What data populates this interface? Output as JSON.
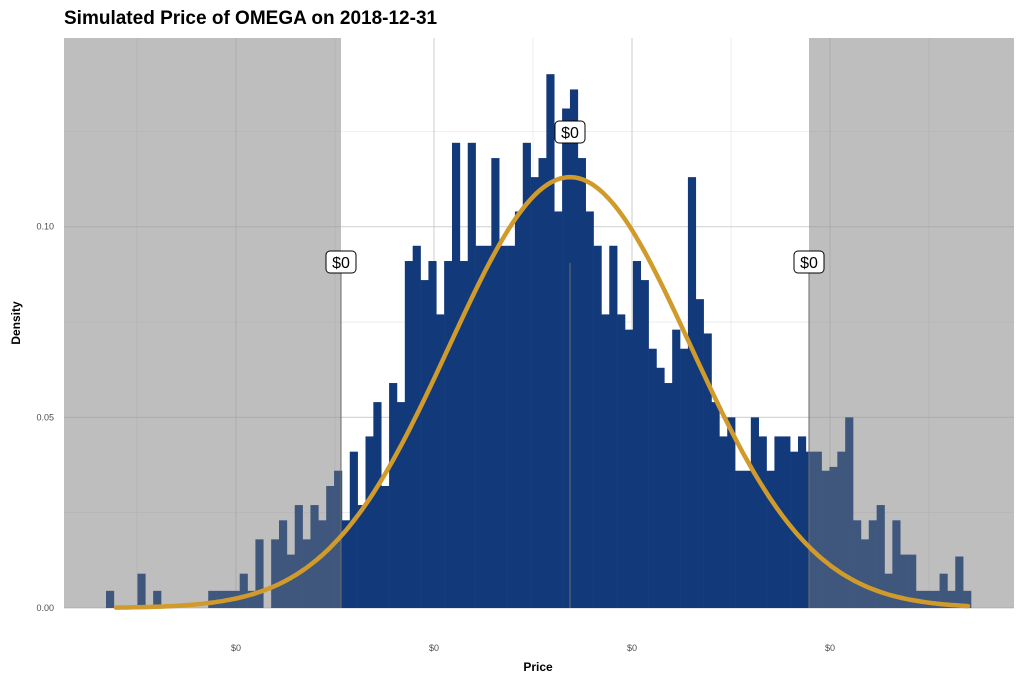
{
  "chart_data": {
    "type": "bar",
    "title": "Simulated Price of OMEGA on 2018-12-31",
    "xlabel": "Price",
    "ylabel": "Density",
    "x_tick_labels": [
      "$0",
      "$0",
      "$0",
      "$0"
    ],
    "y_tick_labels": [
      "0.00",
      "0.05",
      "0.10"
    ],
    "y_ticks": [
      0,
      0.05,
      0.1
    ],
    "ylim": [
      0,
      0.142
    ],
    "grid": true,
    "legend": "none",
    "colors": {
      "bars": "#123a7a",
      "bars_shaded": "#283f66",
      "density_curve": "#d19b2b",
      "shaded_region": "#b3b3b3",
      "panel_background": "#ebebeb"
    },
    "histogram_density": [
      0.0045,
      0,
      0,
      0,
      0.009,
      0,
      0.0045,
      0,
      0,
      0,
      0,
      0,
      0,
      0.0045,
      0.0045,
      0.0045,
      0.0045,
      0.009,
      0.0045,
      0.018,
      0,
      0.018,
      0.023,
      0.014,
      0.027,
      0.018,
      0.027,
      0.023,
      0.032,
      0.036,
      0.023,
      0.041,
      0.027,
      0.045,
      0.054,
      0.032,
      0.059,
      0.054,
      0.091,
      0.095,
      0.086,
      0.091,
      0.077,
      0.091,
      0.122,
      0.091,
      0.122,
      0.095,
      0.095,
      0.118,
      0.095,
      0.095,
      0.104,
      0.122,
      0.113,
      0.118,
      0.14,
      0.104,
      0.131,
      0.136,
      0.118,
      0.104,
      0.095,
      0.077,
      0.095,
      0.077,
      0.073,
      0.091,
      0.086,
      0.068,
      0.063,
      0.059,
      0.073,
      0.068,
      0.113,
      0.081,
      0.072,
      0.054,
      0.045,
      0.05,
      0.036,
      0.036,
      0.05,
      0.045,
      0.036,
      0.045,
      0.045,
      0.041,
      0.045,
      0.041,
      0.041,
      0.036,
      0.037,
      0.041,
      0.05,
      0.023,
      0.018,
      0.023,
      0.027,
      0.009,
      0.023,
      0.014,
      0.014,
      0.0045,
      0.0045,
      0.0045,
      0.009,
      0.0045,
      0.0135,
      0.0045
    ],
    "density_curve_peak": 0.113,
    "annotations": [
      {
        "label": "$0",
        "position": "lower quantile"
      },
      {
        "label": "$0",
        "position": "median"
      },
      {
        "label": "$0",
        "position": "upper quantile"
      }
    ]
  }
}
